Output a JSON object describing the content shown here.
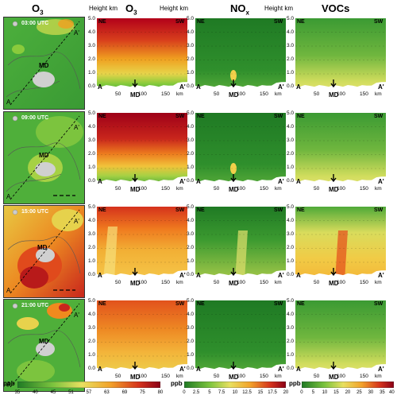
{
  "headers": {
    "col1": "O",
    "col1_sub": "3",
    "height1": "Height km",
    "col2": "O",
    "col2_sub": "3",
    "height2": "Height km",
    "col3": "NO",
    "col3_sub": "x",
    "height3": "Height km",
    "col4": "VOCs"
  },
  "rows": [
    {
      "time": "03:00 UTC"
    },
    {
      "time": "09:00 UTC"
    },
    {
      "time": "15:00 UTC"
    },
    {
      "time": "21:00 UTC"
    }
  ],
  "labels": {
    "md": "MD",
    "a": "A",
    "a_prime": "A'",
    "ne": "NE",
    "sw": "SW",
    "km": "km"
  },
  "yticks": [
    "5.0",
    "4.0",
    "3.0",
    "2.0",
    "1.0",
    "0.0"
  ],
  "xticks": [
    "50",
    "100",
    "150"
  ],
  "colorbars": {
    "o3": {
      "unit": "ppb",
      "ticks": [
        "35",
        "40",
        "45",
        "51",
        "57",
        "63",
        "69",
        "75",
        "80"
      ]
    },
    "nox": {
      "unit": "ppb",
      "ticks": [
        "0",
        "2.5",
        "5",
        "7.5",
        "10",
        "12.5",
        "15",
        "17.5",
        "20"
      ]
    },
    "vocs": {
      "unit": "ppb",
      "ticks": [
        "0",
        "5",
        "10",
        "15",
        "20",
        "25",
        "30",
        "35",
        "40"
      ]
    }
  },
  "colors": {
    "o3_high": "#b2001a",
    "o3_mid": "#f08a1e",
    "o3_low": "#5fbf3c",
    "nox_low": "#2f8a2a",
    "voc_mid": "#e8e070"
  }
}
